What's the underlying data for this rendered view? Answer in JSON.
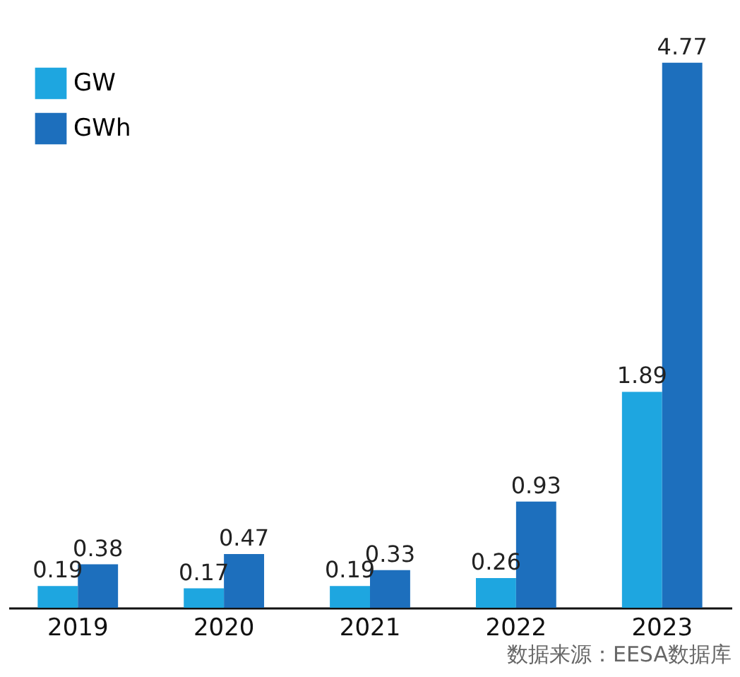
{
  "chart_data": {
    "type": "bar",
    "categories": [
      "2019",
      "2020",
      "2021",
      "2022",
      "2023"
    ],
    "series": [
      {
        "name": "GW",
        "color": "#1ea6e0",
        "values": [
          0.19,
          0.17,
          0.19,
          0.26,
          1.89
        ]
      },
      {
        "name": "GWh",
        "color": "#1d6fbd",
        "values": [
          0.38,
          0.47,
          0.33,
          0.93,
          4.77
        ]
      }
    ],
    "data_labels": true,
    "legend": "top left",
    "grid": false,
    "annotations": [
      "数据来源：EESA数据库"
    ]
  }
}
